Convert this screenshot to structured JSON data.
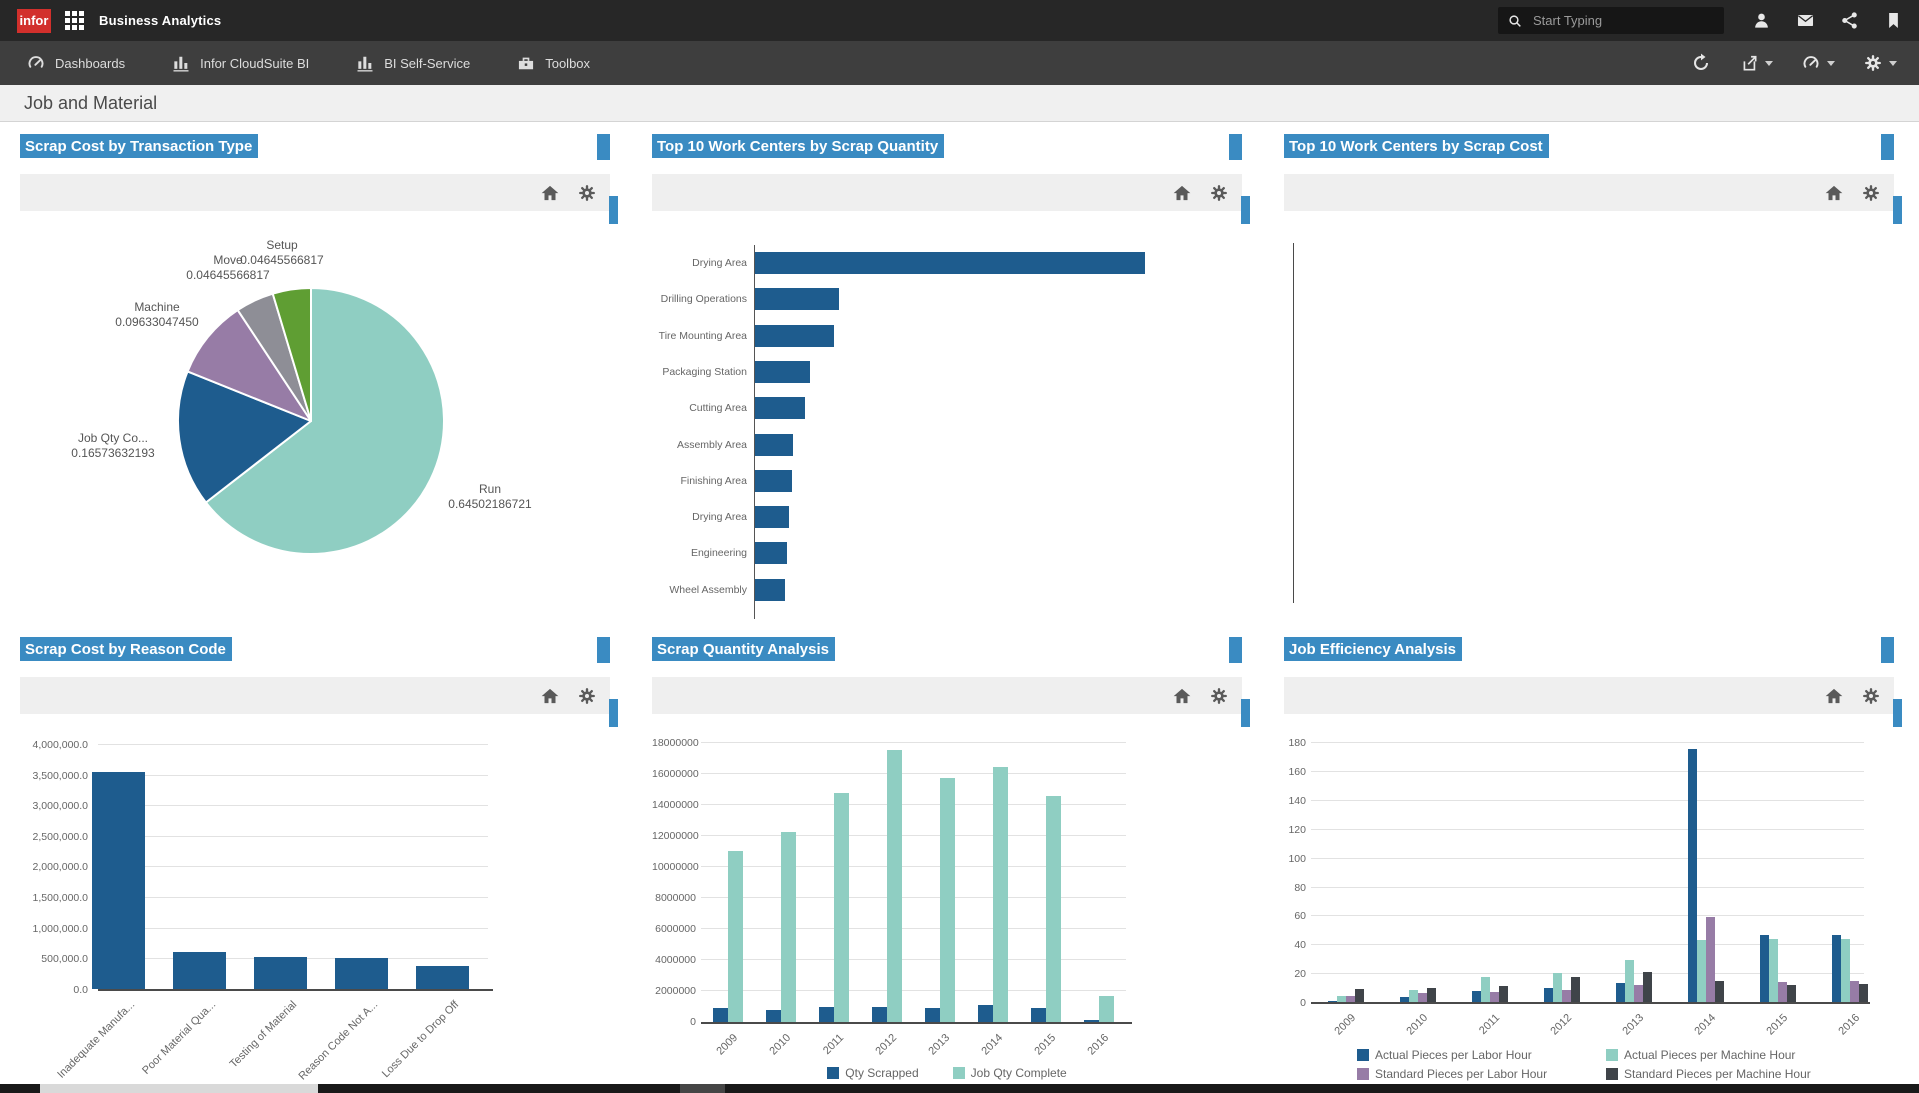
{
  "app": {
    "brand": "infor",
    "title": "Business Analytics",
    "search_placeholder": "Start Typing"
  },
  "nav": {
    "items": [
      {
        "label": "Dashboards",
        "icon": "gauge-icon"
      },
      {
        "label": "Infor CloudSuite BI",
        "icon": "bar-chart-icon"
      },
      {
        "label": "BI Self-Service",
        "icon": "bar-chart-icon"
      },
      {
        "label": "Toolbox",
        "icon": "toolbox-icon"
      }
    ],
    "actions": [
      {
        "name": "refresh"
      },
      {
        "name": "export",
        "has_dropdown": true
      },
      {
        "name": "dashboards",
        "has_dropdown": true
      },
      {
        "name": "settings",
        "has_dropdown": true
      }
    ]
  },
  "page": {
    "title": "Job and Material"
  },
  "colors": {
    "accent_blue": "#3A8BC2",
    "series_blue": "#1E5C8E",
    "series_teal": "#8FCEC2",
    "series_purple": "#977CA6",
    "series_gray": "#8E8E96",
    "series_green": "#5F9E33",
    "series_darkgray": "#3F4449",
    "brand_red": "#D2302C"
  },
  "charts": [
    {
      "title": "Scrap Cost by Transaction Type",
      "chart_data": {
        "type": "pie",
        "series": [
          {
            "label": "Run",
            "value": 0.64502186721,
            "display": "0.64502186721",
            "color": "#8FCEC2"
          },
          {
            "label": "Job Qty Co...",
            "value": 0.16573632193,
            "display": "0.16573632193",
            "color": "#1E5C8E"
          },
          {
            "label": "Machine",
            "value": 0.0963304745,
            "display": "0.09633047450",
            "color": "#977CA6"
          },
          {
            "label": "Move",
            "value": 0.04645566817,
            "display": "0.04645566817",
            "color": "#8E8E96"
          },
          {
            "label": "Setup",
            "value": 0.04645566817,
            "display": "0.04645566817",
            "color": "#5F9E33"
          }
        ]
      }
    },
    {
      "title": "Top 10 Work Centers by Scrap Quantity",
      "chart_data": {
        "type": "bar",
        "orientation": "horizontal",
        "categories": [
          "Drying Area",
          "Drilling Operations",
          "Tire Mounting Area",
          "Packaging Station",
          "Cutting Area",
          "Assembly Area",
          "Finishing Area",
          "Drying Area",
          "Engineering",
          "Wheel Assembly"
        ],
        "values": [
          100,
          21.5,
          20.2,
          14.1,
          12.8,
          9.7,
          9.5,
          8.7,
          8.2,
          7.7
        ],
        "value_note": "relative scrap quantity, percent of longest bar (axis unlabeled)",
        "color": "#1E5C8E"
      }
    },
    {
      "title": "Top 10 Work Centers by Scrap Cost",
      "chart_data": {
        "type": "bar",
        "orientation": "horizontal",
        "categories": [],
        "values": [],
        "value_note": "empty chart, only y-axis line rendered"
      }
    },
    {
      "title": "Scrap Cost by Reason Code",
      "chart_data": {
        "type": "bar",
        "orientation": "vertical",
        "categories": [
          "Inadequate Manufa...",
          "Poor Material Qua...",
          "Testing of Material",
          "Reason Code Not A...",
          "Loss Due to Drop Off"
        ],
        "values": [
          3550000,
          605000,
          522000,
          506000,
          375000
        ],
        "yticks": [
          "4,000,000.0",
          "3,500,000.0",
          "3,000,000.0",
          "2,500,000.0",
          "2,000,000.0",
          "1,500,000.0",
          "1,000,000.0",
          "500,000.0",
          "0.0"
        ],
        "ylim": [
          0,
          4000000
        ],
        "color": "#1E5C8E"
      }
    },
    {
      "title": "Scrap Quantity Analysis",
      "chart_data": {
        "type": "grouped_bar",
        "categories": [
          "2009",
          "2010",
          "2011",
          "2012",
          "2013",
          "2014",
          "2015",
          "2016"
        ],
        "series": [
          {
            "name": "Qty Scrapped",
            "color": "#1E5C8E",
            "values": [
              900000,
              770000,
              970000,
              970000,
              900000,
              1100000,
              900000,
              150000
            ]
          },
          {
            "name": "Job Qty Complete",
            "color": "#8FCEC2",
            "values": [
              11000000,
              12200000,
              14700000,
              17500000,
              15700000,
              16400000,
              14500000,
              1650000
            ]
          }
        ],
        "yticks": [
          "18000000",
          "16000000",
          "14000000",
          "12000000",
          "10000000",
          "8000000",
          "6000000",
          "4000000",
          "2000000",
          "0"
        ],
        "ylim": [
          0,
          18000000
        ],
        "legend_position": "bottom"
      }
    },
    {
      "title": "Job Efficiency Analysis",
      "chart_data": {
        "type": "grouped_bar",
        "categories": [
          "2009",
          "2010",
          "2011",
          "2012",
          "2013",
          "2014",
          "2015",
          "2016"
        ],
        "series": [
          {
            "name": "Actual Pieces per Labor Hour",
            "color": "#1E5C8E",
            "values": [
              1,
              3.5,
              7.5,
              10,
              13,
              175,
              46.5,
              46.5
            ]
          },
          {
            "name": "Actual Pieces per Machine Hour",
            "color": "#8FCEC2",
            "values": [
              4,
              8.5,
              17.5,
              20,
              29,
              43,
              43.5,
              43.5
            ]
          },
          {
            "name": "Standard Pieces per Labor Hour",
            "color": "#977CA6",
            "values": [
              4,
              6,
              7,
              8.5,
              11.5,
              59,
              14,
              14.5
            ]
          },
          {
            "name": "Standard Pieces per Machine Hour",
            "color": "#3F4449",
            "values": [
              9,
              10,
              11,
              17.5,
              21,
              14.5,
              12,
              12.5
            ]
          }
        ],
        "yticks": [
          "180",
          "160",
          "140",
          "120",
          "100",
          "80",
          "60",
          "40",
          "20",
          "0"
        ],
        "ylim": [
          0,
          180
        ],
        "legend_position": "bottom"
      }
    }
  ],
  "panel_toolbar": {
    "icons": [
      "home",
      "settings"
    ]
  },
  "scrollbar": {
    "orientation": "horizontal"
  }
}
